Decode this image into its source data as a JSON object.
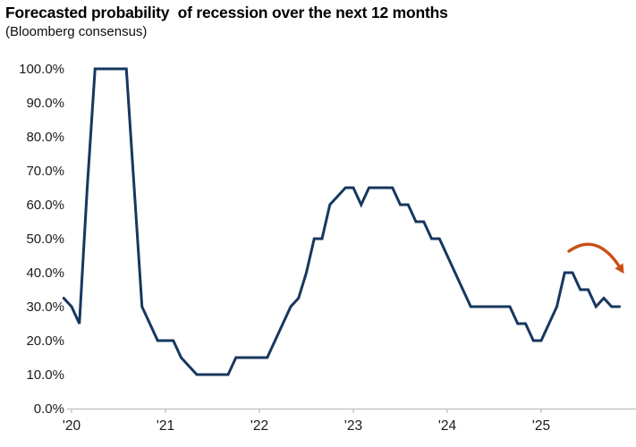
{
  "chart_data": {
    "type": "line",
    "title": "Forecasted probability  of recession over the next 12 months",
    "subtitle": "(Bloomberg consensus)",
    "xlabel": "",
    "ylabel": "",
    "ylim": [
      0,
      100
    ],
    "grid": false,
    "legend": "none",
    "x_tick_labels": [
      "'20",
      "'21",
      "'22",
      "'23",
      "'24",
      "'25"
    ],
    "y_tick_labels": [
      "0.0%",
      "10.0%",
      "20.0%",
      "30.0%",
      "40.0%",
      "50.0%",
      "60.0%",
      "70.0%",
      "80.0%",
      "90.0%",
      "100.0%"
    ],
    "series": [
      {
        "name": "Forecasted probability of recession over the next 12 months",
        "x_start": "2019-12",
        "frequency": "monthly",
        "values": [
          32.5,
          30,
          25,
          65,
          100,
          100,
          100,
          100,
          100,
          65,
          30,
          25,
          20,
          20,
          20,
          15,
          12.5,
          10,
          10,
          10,
          10,
          10,
          15,
          15,
          15,
          15,
          15,
          20,
          25,
          30,
          32.5,
          40,
          50,
          50,
          60,
          62.5,
          65,
          65,
          60,
          65,
          65,
          65,
          65,
          60,
          60,
          55,
          55,
          50,
          50,
          45,
          40,
          35,
          30,
          30,
          30,
          30,
          30,
          30,
          25,
          25,
          20,
          20,
          25,
          30,
          40,
          40,
          35,
          35,
          30,
          32.5,
          30,
          30
        ]
      }
    ],
    "annotation": {
      "type": "curved-arrow",
      "description": "orange arrow arcing downward over the 2025 peak, suggesting declining recession odds",
      "color": "#cb4e17"
    },
    "colors": {
      "line": "#17375e",
      "axis": "#bfbfbf",
      "tick_text": "#1a1a1a",
      "arrow": "#cb4e17"
    }
  }
}
